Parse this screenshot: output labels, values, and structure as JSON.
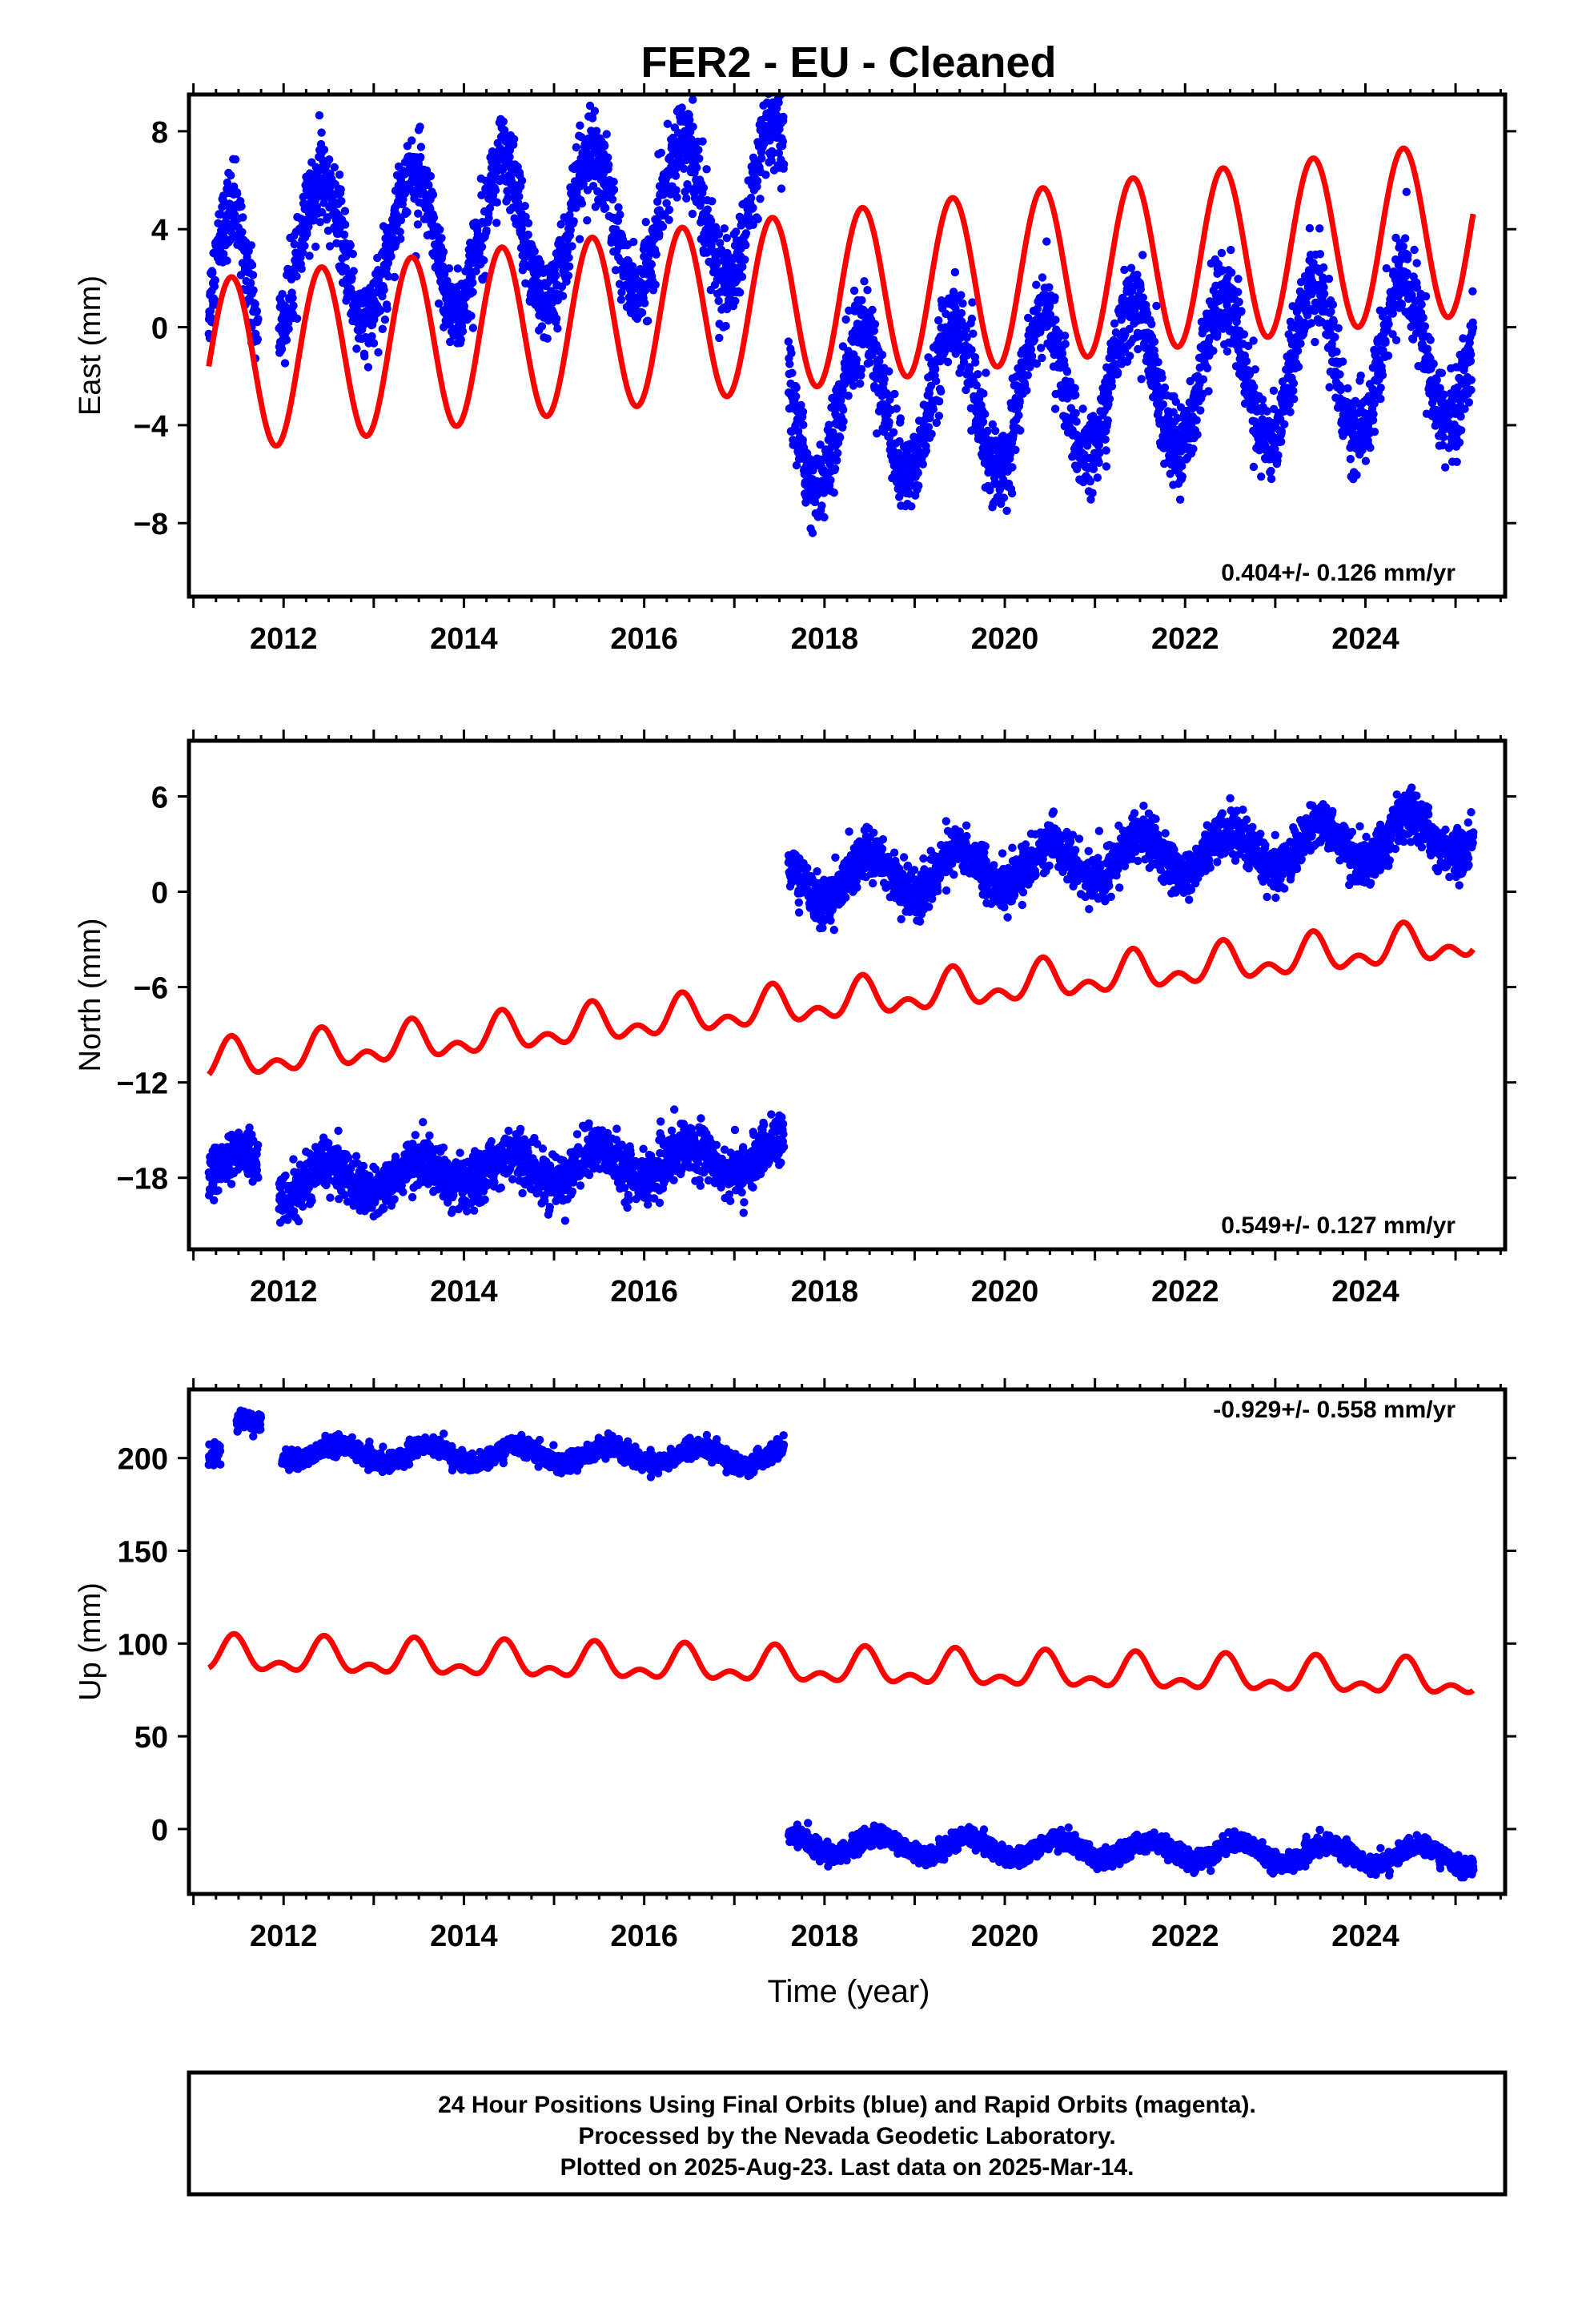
{
  "title": "FER2  - EU - Cleaned",
  "xlabel": "Time (year)",
  "footer": [
    "24 Hour Positions Using Final Orbits (blue) and Rapid Orbits (magenta).",
    "Processed by the Nevada Geodetic Laboratory.",
    "Plotted on 2025-Aug-23. Last data on 2025-Mar-14."
  ],
  "colors": {
    "data": "#0000ff",
    "model": "#ff0000",
    "axis": "#000000"
  },
  "chart_data": [
    {
      "type": "scatter",
      "ylabel": "East (mm)",
      "rate_label": "0.404+/- 0.126 mm/yr",
      "xlim": [
        2010.95,
        2025.55
      ],
      "ylim": [
        -11,
        9.5
      ],
      "x_ticks": [
        2012,
        2014,
        2016,
        2018,
        2020,
        2022,
        2024
      ],
      "y_ticks": [
        -8,
        -4,
        0,
        4,
        8
      ],
      "y_tick_labels": [
        "−8",
        "−4",
        "0",
        "4",
        "8"
      ],
      "grid": false,
      "series": [
        {
          "kind": "points",
          "segments": [
            {
              "x_start": 2011.17,
              "x_end": 2011.72,
              "offset": 0.6,
              "trend": 0.0,
              "amplitude": 4.2,
              "phase_peak": 0.42,
              "scatter": 1.4
            },
            {
              "x_start": 2011.95,
              "x_end": 2017.55,
              "offset": 2.8,
              "trend": 0.4,
              "amplitude": 3.0,
              "phase_peak": 0.42,
              "scatter": 1.4
            },
            {
              "x_start": 2017.6,
              "x_end": 2025.2,
              "offset": -3.5,
              "trend": 0.35,
              "amplitude": 3.1,
              "phase_peak": 0.42,
              "scatter": 1.4
            }
          ]
        },
        {
          "kind": "model",
          "x_start": 2011.17,
          "x_end": 2025.2,
          "offset": -1.6,
          "trend": 0.404,
          "x_ref": 2011.17,
          "amplitude": 3.55,
          "phase_peak": 0.42,
          "semi_amplitude": 0.0
        }
      ]
    },
    {
      "type": "scatter",
      "ylabel": "North (mm)",
      "rate_label": "0.549+/- 0.127 mm/yr",
      "xlim": [
        2010.95,
        2025.55
      ],
      "ylim": [
        -22.5,
        9.5
      ],
      "x_ticks": [
        2012,
        2014,
        2016,
        2018,
        2020,
        2022,
        2024
      ],
      "y_ticks": [
        -18,
        -12,
        -6,
        0,
        6
      ],
      "y_tick_labels": [
        "−18",
        "−12",
        "−6",
        "0",
        "6"
      ],
      "grid": false,
      "series": [
        {
          "kind": "points",
          "segments": [
            {
              "x_start": 2011.17,
              "x_end": 2011.72,
              "offset": -17.5,
              "trend": 0.0,
              "amplitude": 1.0,
              "phase_peak": 0.5,
              "scatter": 1.3
            },
            {
              "x_start": 2011.95,
              "x_end": 2017.55,
              "offset": -18.3,
              "trend": 0.3,
              "amplitude": 1.0,
              "phase_peak": 0.5,
              "scatter": 1.3
            },
            {
              "x_start": 2017.6,
              "x_end": 2025.2,
              "offset": 0.6,
              "trend": 0.4,
              "amplitude": 1.3,
              "phase_peak": 0.5,
              "scatter": 1.2
            }
          ]
        },
        {
          "kind": "model",
          "x_start": 2011.17,
          "x_end": 2025.2,
          "offset": -10.8,
          "trend": 0.549,
          "x_ref": 2011.17,
          "amplitude": 0.9,
          "phase_peak": 0.42,
          "semi_amplitude": 0.7
        }
      ]
    },
    {
      "type": "scatter",
      "ylabel": "Up (mm)",
      "rate_label": "-0.929+/- 0.558 mm/yr",
      "xlim": [
        2010.95,
        2025.55
      ],
      "ylim": [
        -35,
        237
      ],
      "x_ticks": [
        2012,
        2014,
        2016,
        2018,
        2020,
        2022,
        2024
      ],
      "y_ticks": [
        0,
        50,
        100,
        150,
        200
      ],
      "y_tick_labels": [
        "0",
        "50",
        "100",
        "150",
        "200"
      ],
      "grid": false,
      "series": [
        {
          "kind": "points",
          "segments": [
            {
              "x_start": 2011.17,
              "x_end": 2011.3,
              "offset": 205,
              "trend": 0.0,
              "amplitude": 5,
              "phase_peak": 0.6,
              "scatter": 4.5
            },
            {
              "x_start": 2011.48,
              "x_end": 2011.75,
              "offset": 218,
              "trend": 0.0,
              "amplitude": 2,
              "phase_peak": 0.6,
              "scatter": 4
            },
            {
              "x_start": 2011.98,
              "x_end": 2017.55,
              "offset": 203,
              "trend": -0.4,
              "amplitude": 5,
              "phase_peak": 0.6,
              "scatter": 4
            },
            {
              "x_start": 2017.6,
              "x_end": 2025.2,
              "offset": -8,
              "trend": -0.9,
              "amplitude": 5.5,
              "phase_peak": 0.6,
              "scatter": 4
            }
          ]
        },
        {
          "kind": "model",
          "x_start": 2011.17,
          "x_end": 2025.2,
          "offset": 93,
          "trend": -0.929,
          "x_ref": 2011.17,
          "amplitude": 7.5,
          "phase_peak": 0.45,
          "semi_amplitude": 5
        }
      ]
    }
  ]
}
